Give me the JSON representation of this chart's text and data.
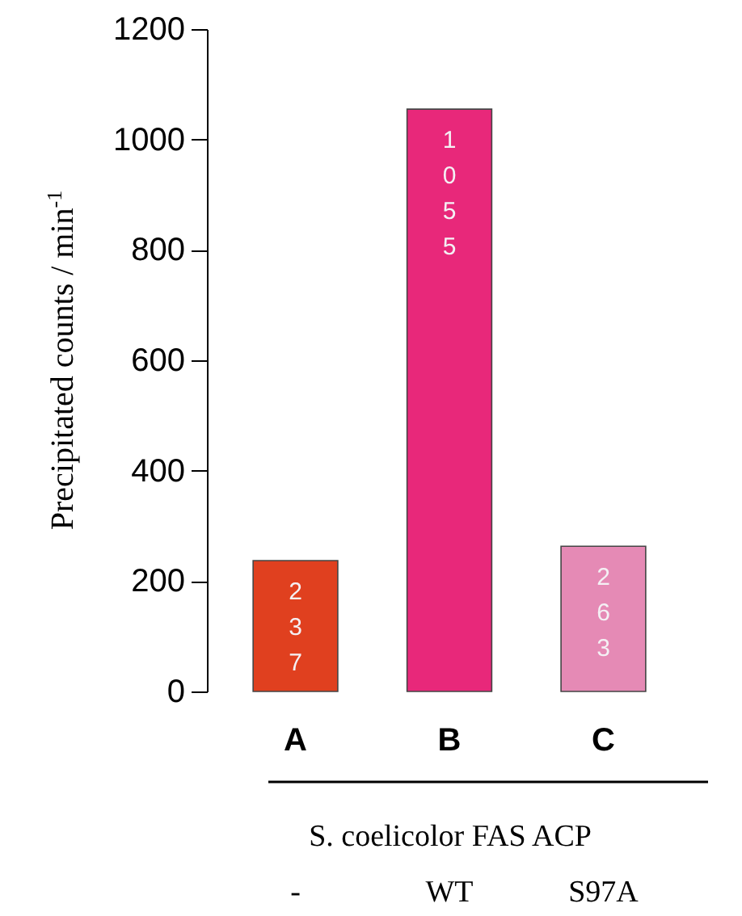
{
  "chart_data": {
    "type": "bar",
    "categories": [
      "A",
      "B",
      "C"
    ],
    "values": [
      237,
      1055,
      263
    ],
    "colors": [
      "#e0401f",
      "#e8287a",
      "#e58ab5"
    ],
    "data_labels": true,
    "ylabel": "Precipitated counts / min$^{-1}$",
    "xlabel": "S. coelicolor FAS ACP",
    "annotations": [
      "-",
      "WT",
      "S97A"
    ],
    "ylim": [
      0,
      1200
    ],
    "yticks": [
      0,
      200,
      400,
      600,
      800,
      1000,
      1200
    ],
    "grid": false
  }
}
